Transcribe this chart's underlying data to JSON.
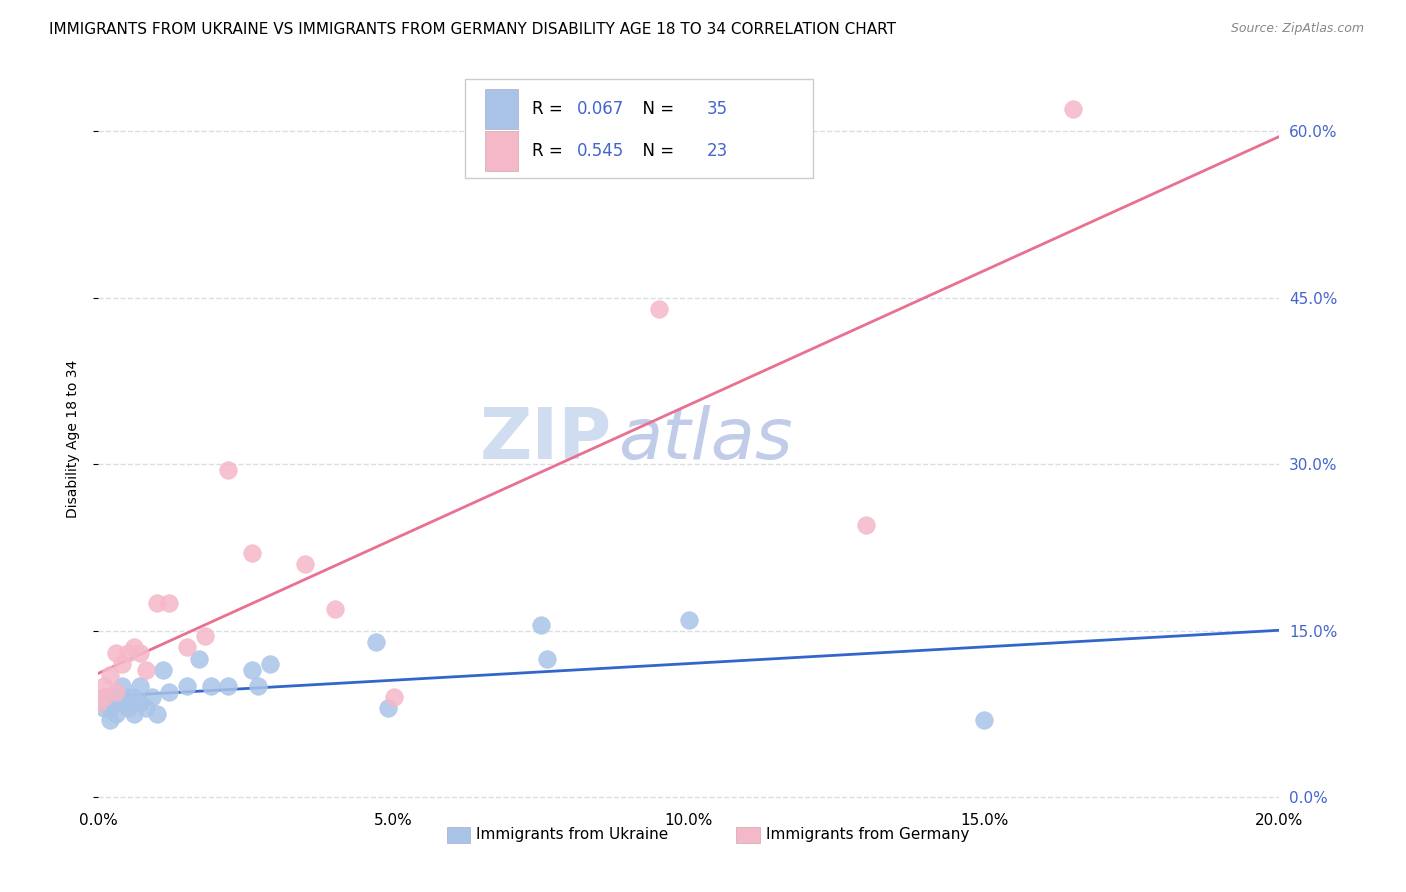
{
  "title": "IMMIGRANTS FROM UKRAINE VS IMMIGRANTS FROM GERMANY DISABILITY AGE 18 TO 34 CORRELATION CHART",
  "source": "Source: ZipAtlas.com",
  "ylabel": "Disability Age 18 to 34",
  "label_ukraine": "Immigrants from Ukraine",
  "label_germany": "Immigrants from Germany",
  "ukraine_R": 0.067,
  "ukraine_N": 35,
  "germany_R": 0.545,
  "germany_N": 23,
  "ukraine_color": "#aac4e8",
  "germany_color": "#f5b8c8",
  "ukraine_line_color": "#3366cc",
  "germany_line_color": "#e87090",
  "xlim": [
    0.0,
    0.2
  ],
  "ylim": [
    -0.005,
    0.65
  ],
  "yticks": [
    0.0,
    0.15,
    0.3,
    0.45,
    0.6
  ],
  "xticks": [
    0.0,
    0.05,
    0.1,
    0.15,
    0.2
  ],
  "ukraine_x": [
    0.0,
    0.001,
    0.001,
    0.002,
    0.002,
    0.002,
    0.003,
    0.003,
    0.003,
    0.004,
    0.004,
    0.005,
    0.005,
    0.006,
    0.006,
    0.007,
    0.007,
    0.008,
    0.009,
    0.01,
    0.011,
    0.012,
    0.015,
    0.017,
    0.019,
    0.022,
    0.026,
    0.027,
    0.029,
    0.047,
    0.049,
    0.075,
    0.076,
    0.1,
    0.15
  ],
  "ukraine_y": [
    0.085,
    0.08,
    0.09,
    0.07,
    0.08,
    0.09,
    0.075,
    0.085,
    0.09,
    0.085,
    0.1,
    0.08,
    0.09,
    0.075,
    0.09,
    0.085,
    0.1,
    0.08,
    0.09,
    0.075,
    0.115,
    0.095,
    0.1,
    0.125,
    0.1,
    0.1,
    0.115,
    0.1,
    0.12,
    0.14,
    0.08,
    0.155,
    0.125,
    0.16,
    0.07
  ],
  "germany_x": [
    0.0,
    0.001,
    0.001,
    0.002,
    0.003,
    0.003,
    0.004,
    0.005,
    0.006,
    0.007,
    0.008,
    0.01,
    0.012,
    0.015,
    0.018,
    0.022,
    0.026,
    0.035,
    0.04,
    0.05,
    0.095,
    0.13,
    0.165
  ],
  "germany_y": [
    0.085,
    0.09,
    0.1,
    0.11,
    0.095,
    0.13,
    0.12,
    0.13,
    0.135,
    0.13,
    0.115,
    0.175,
    0.175,
    0.135,
    0.145,
    0.295,
    0.22,
    0.21,
    0.17,
    0.09,
    0.44,
    0.245,
    0.62
  ],
  "title_fontsize": 11,
  "source_fontsize": 9,
  "axis_label_fontsize": 10,
  "tick_fontsize": 11,
  "legend_fontsize": 12,
  "watermark_zip": "ZIP",
  "watermark_atlas": "atlas",
  "watermark_color_zip": "#d0ddf0",
  "watermark_color_atlas": "#c0cce8",
  "watermark_fontsize": 52,
  "background_color": "#ffffff",
  "grid_color": "#d8dde8",
  "right_axis_color": "#4466cc",
  "tick_color": "#334499"
}
